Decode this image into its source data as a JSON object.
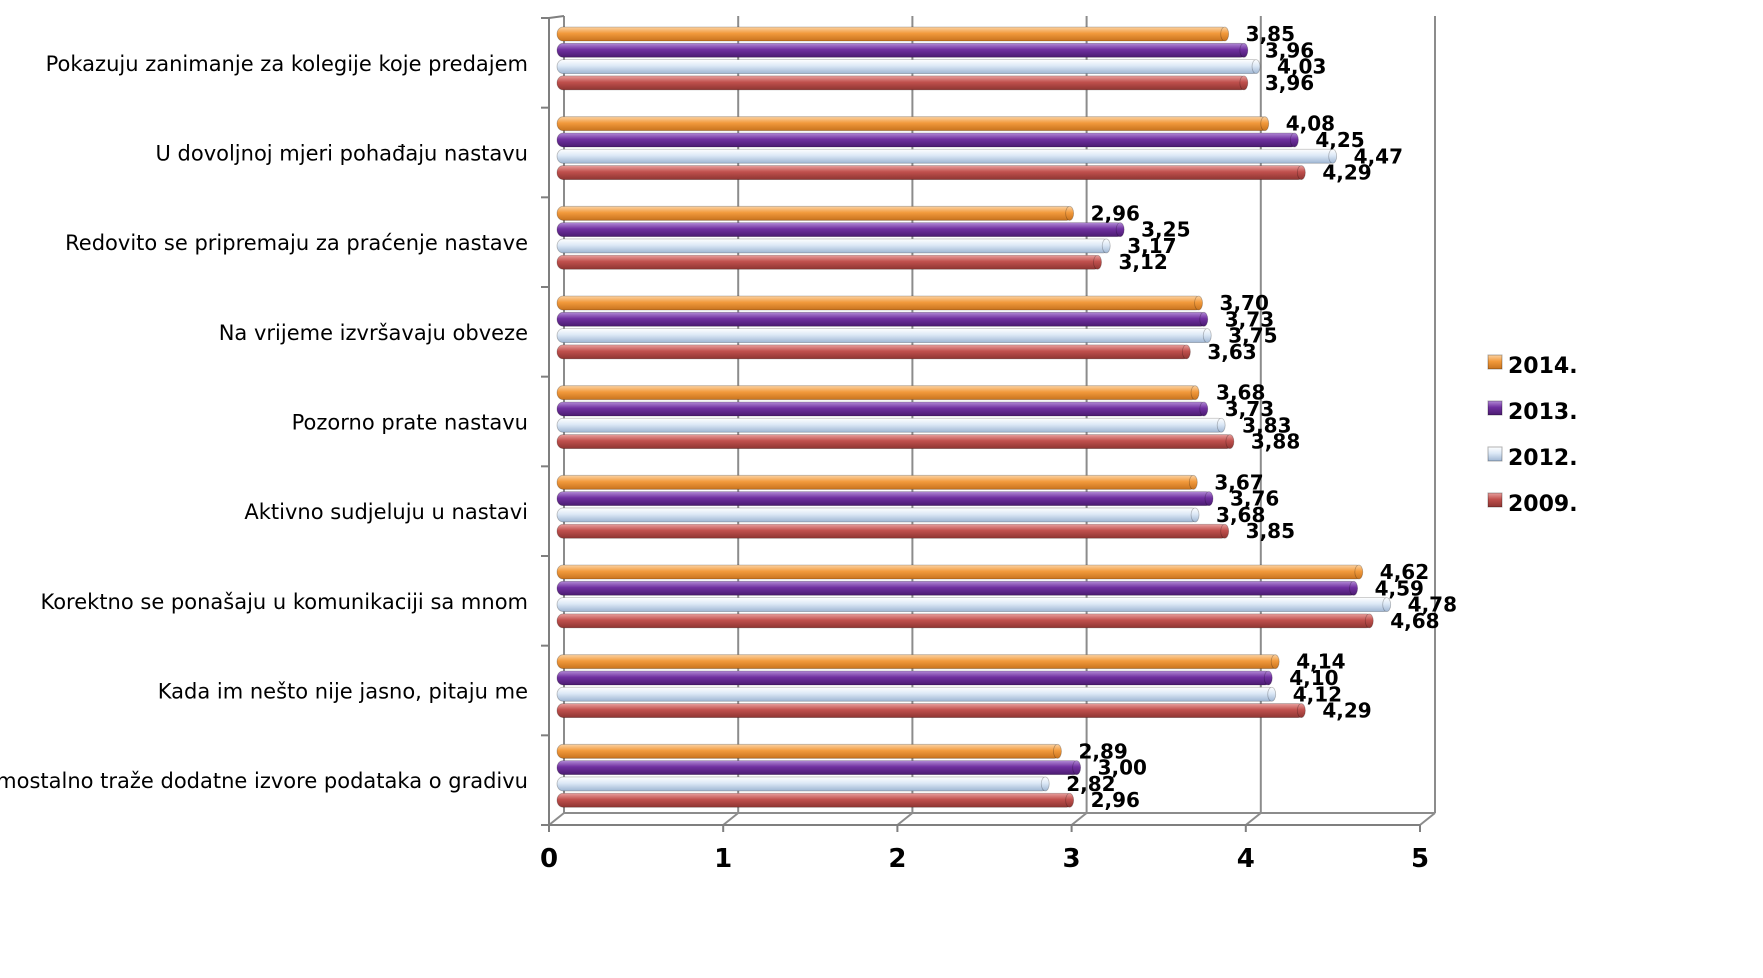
{
  "chart_data": {
    "type": "bar",
    "orientation": "horizontal",
    "categories": [
      "Pokazuju zanimanje za kolegije koje predajem",
      "U dovoljnoj mjeri pohađaju nastavu",
      "Redovito se pripremaju za praćenje nastave",
      "Na vrijeme izvršavaju obveze",
      "Pozorno prate nastavu",
      "Aktivno sudjeluju u nastavi",
      "Korektno se ponašaju u komunikaciji sa mnom",
      "Kada im nešto nije jasno, pitaju me",
      "Samostalno traže dodatne izvore podataka o gradivu"
    ],
    "series": [
      {
        "name": "2014.",
        "color": "#f29a3c",
        "values": [
          3.85,
          4.08,
          2.96,
          3.7,
          3.68,
          3.67,
          4.62,
          4.14,
          2.89
        ],
        "labels": [
          "3,85",
          "4,08",
          "2,96",
          "3,70",
          "3,68",
          "3,67",
          "4,62",
          "4,14",
          "2,89"
        ]
      },
      {
        "name": "2013.",
        "color": "#7030a0",
        "values": [
          3.96,
          4.25,
          3.25,
          3.73,
          3.73,
          3.76,
          4.59,
          4.1,
          3.0
        ],
        "labels": [
          "3,96",
          "4,25",
          "3,25",
          "3,73",
          "3,73",
          "3,76",
          "4,59",
          "4,10",
          "3,00"
        ]
      },
      {
        "name": "2012.",
        "color": "#c6d9f1",
        "values": [
          4.03,
          4.47,
          3.17,
          3.75,
          3.83,
          3.68,
          4.78,
          4.12,
          2.82
        ],
        "labels": [
          "4,03",
          "4,47",
          "3,17",
          "3,75",
          "3,83",
          "3,68",
          "4,78",
          "4,12",
          "2,82"
        ]
      },
      {
        "name": "2009.",
        "color": "#c0504d",
        "values": [
          3.96,
          4.29,
          3.12,
          3.63,
          3.88,
          3.85,
          4.68,
          4.29,
          2.96
        ],
        "labels": [
          "3,96",
          "4,29",
          "3,12",
          "3,63",
          "3,88",
          "3,85",
          "4,68",
          "4,29",
          "2,96"
        ]
      }
    ],
    "xlim": [
      0,
      5
    ],
    "x_ticks": [
      "0",
      "1",
      "2",
      "3",
      "4",
      "5"
    ],
    "title": "",
    "xlabel": "",
    "ylabel": "",
    "grid": true,
    "legend_position": "right",
    "legend_order": [
      "2014.",
      "2013.",
      "2012.",
      "2009."
    ]
  }
}
